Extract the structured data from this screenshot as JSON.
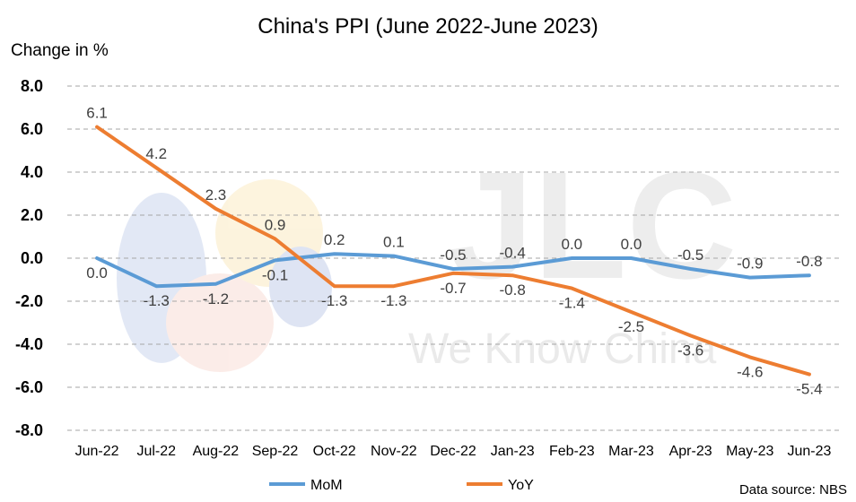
{
  "chart_data": {
    "type": "line",
    "title": "China's PPI (June 2022-June 2023)",
    "ylabel": "Change in %",
    "xlabel": "",
    "ylim": [
      -8.0,
      8.0
    ],
    "yticks": [
      "8.0",
      "6.0",
      "4.0",
      "2.0",
      "0.0",
      "-2.0",
      "-4.0",
      "-6.0",
      "-8.0"
    ],
    "ytick_values": [
      8,
      6,
      4,
      2,
      0,
      -2,
      -4,
      -6,
      -8
    ],
    "categories": [
      "Jun-22",
      "Jul-22",
      "Aug-22",
      "Sep-22",
      "Oct-22",
      "Nov-22",
      "Dec-22",
      "Jan-23",
      "Feb-23",
      "Mar-23",
      "Apr-23",
      "May-23",
      "Jun-23"
    ],
    "series": [
      {
        "name": "MoM",
        "color": "#5b9bd5",
        "values": [
          0.0,
          -1.3,
          -1.2,
          -0.1,
          0.2,
          0.1,
          -0.5,
          -0.4,
          0.0,
          0.0,
          -0.5,
          -0.9,
          -0.8
        ],
        "labels": [
          "0.0",
          "-1.3",
          "-1.2",
          "-0.1",
          "0.2",
          "0.1",
          "-0.5",
          "-0.4",
          "0.0",
          "0.0",
          "-0.5",
          "-0.9",
          "-0.8"
        ]
      },
      {
        "name": "YoY",
        "color": "#ed7d31",
        "values": [
          6.1,
          4.2,
          2.3,
          0.9,
          -1.3,
          -1.3,
          -0.7,
          -0.8,
          -1.4,
          -2.5,
          -3.6,
          -4.6,
          -5.4
        ],
        "labels": [
          "6.1",
          "4.2",
          "2.3",
          "0.9",
          "-1.3",
          "-1.3",
          "-0.7",
          "-0.8",
          "-1.4",
          "-2.5",
          "-3.6",
          "-4.6",
          "-5.4"
        ]
      }
    ],
    "grid": true,
    "legend": "bottom",
    "source": "Data source: NBS"
  },
  "watermark": {
    "letters": "JLC",
    "tagline": "We Know China"
  }
}
